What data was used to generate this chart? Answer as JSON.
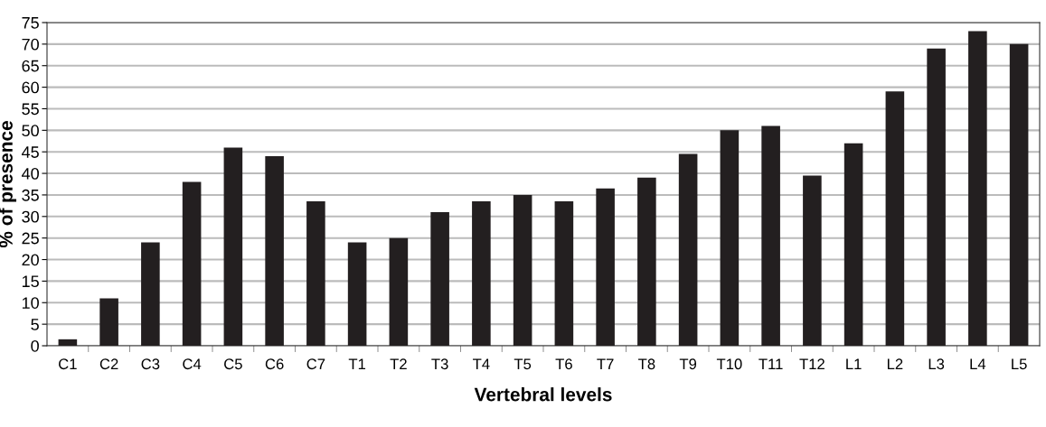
{
  "chart_data": {
    "type": "bar",
    "xlabel": "Vertebral levels",
    "ylabel": "% of presence",
    "categories": [
      "C1",
      "C2",
      "C3",
      "C4",
      "C5",
      "C6",
      "C7",
      "T1",
      "T2",
      "T3",
      "T4",
      "T5",
      "T6",
      "T7",
      "T8",
      "T9",
      "T10",
      "T11",
      "T12",
      "L1",
      "L2",
      "L3",
      "L4",
      "L5"
    ],
    "values": [
      1.5,
      11,
      24,
      38,
      46,
      44,
      33.5,
      24,
      25,
      31,
      33.5,
      35,
      33.5,
      36.5,
      39,
      44.5,
      50,
      51,
      39.5,
      47,
      59,
      69,
      73,
      70
    ],
    "color": "#231f20",
    "ylim": [
      0,
      75
    ],
    "yticks": [
      0,
      5,
      10,
      15,
      20,
      25,
      30,
      35,
      40,
      45,
      50,
      55,
      60,
      65,
      70,
      75
    ],
    "grid": "y"
  }
}
